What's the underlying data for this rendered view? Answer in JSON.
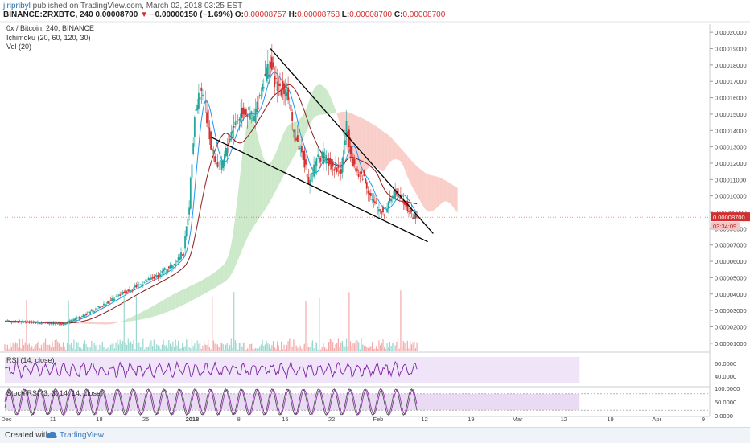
{
  "header": {
    "author": "jiripribyl",
    "published_text": " published on TradingView.com, March 02, 2018 03:25 EST",
    "symbol": "BINANCE:ZRXBTC, 240",
    "last_price": "0.00008700",
    "change": "−0.00000150 (−1.69%)",
    "o_label": "O:",
    "o_value": "0.00008757",
    "h_label": "H:",
    "h_value": "0.00008758",
    "l_label": "L:",
    "l_value": "0.00008700",
    "c_label": "C:",
    "c_value": "0.00008700"
  },
  "legend": {
    "title": "0x / Bitcoin, 240, BINANCE",
    "ichimoku": "Ichimoku (20, 60, 120, 30)",
    "vol": "Vol (20)"
  },
  "rsi_label": "RSI (14, close)",
  "stoch_label": "Stoch RSI (3, 3, 14, 14, close)",
  "price_tag": "0.00008700",
  "time_tag": "03:34:09",
  "footer": {
    "created": "Created with",
    "brand": "TradingView"
  },
  "colors": {
    "up": "#26a69a",
    "down": "#d32f2f",
    "conversion": "#2196f3",
    "base": "#8b1a1a",
    "cloud_bull": "#b5dfb0",
    "cloud_bear": "#f7b8b0",
    "rsi": "#7b1fa2",
    "band": "#e5d2f3",
    "stoch_k": "#444444",
    "stoch_d": "#8e24aa",
    "trendline": "#000000"
  },
  "chart_data": {
    "type": "candlestick",
    "x_ticks": [
      "Dec",
      "11",
      "18",
      "25",
      "2018",
      "8",
      "15",
      "22",
      "Feb",
      "12",
      "19",
      "Mar",
      "12",
      "19",
      "Apr",
      "9"
    ],
    "y_ticks": [
      "0.00020000",
      "0.00019000",
      "0.00018000",
      "0.00017000",
      "0.00016000",
      "0.00015000",
      "0.00014000",
      "0.00013000",
      "0.00012000",
      "0.00011000",
      "0.00010000",
      "0.00009000",
      "0.00008000",
      "0.00007000",
      "0.00006000",
      "0.00005000",
      "0.00004000",
      "0.00003000",
      "0.00002000",
      "0.00001000"
    ],
    "ylim": [
      5e-06,
      0.000205
    ],
    "close_path": [
      [
        0,
        2.35e-05
      ],
      [
        6,
        2.25e-05
      ],
      [
        11,
        2.2e-05
      ],
      [
        14,
        2.6e-05
      ],
      [
        18,
        3.3e-05
      ],
      [
        22,
        4.1e-05
      ],
      [
        25,
        4.6e-05
      ],
      [
        28,
        5.1e-05
      ],
      [
        31,
        5.8e-05
      ],
      [
        33,
        6.6e-05
      ],
      [
        34,
        9.5e-05
      ],
      [
        35,
        0.00015
      ],
      [
        36,
        0.000165
      ],
      [
        37,
        0.000155
      ],
      [
        38,
        0.00013
      ],
      [
        39,
        0.00012
      ],
      [
        40,
        0.000118
      ],
      [
        42,
        0.000142
      ],
      [
        44,
        0.000152
      ],
      [
        46,
        0.000148
      ],
      [
        48,
        0.000175
      ],
      [
        49,
        0.00018
      ],
      [
        50,
        0.000168
      ],
      [
        52,
        0.000165
      ],
      [
        53,
        0.000142
      ],
      [
        54,
        0.000132
      ],
      [
        55,
        0.000125
      ],
      [
        56,
        0.000108
      ],
      [
        58,
        0.000125
      ],
      [
        60,
        0.00012
      ],
      [
        62,
        0.000115
      ],
      [
        63,
        0.000142
      ],
      [
        64,
        0.000125
      ],
      [
        65,
        0.000112
      ],
      [
        66,
        0.000113
      ],
      [
        68,
        9.5e-05
      ],
      [
        69,
        9.2e-05
      ],
      [
        70,
        9e-05
      ],
      [
        71,
        9.8e-05
      ],
      [
        72,
        0.000102
      ],
      [
        73,
        0.000101
      ],
      [
        74,
        9.5e-05
      ],
      [
        75,
        8.8e-05
      ],
      [
        76,
        8.7e-05
      ]
    ],
    "trendlines": [
      {
        "from": [
          49,
          0.00019
        ],
        "to": [
          79,
          7.7e-05
        ]
      },
      {
        "from": [
          38,
          0.000136
        ],
        "to": [
          78,
          7.2e-05
        ]
      }
    ],
    "last_price": 8.7e-05,
    "rsi_ticks": [
      "60.0000",
      "40.0000"
    ],
    "stoch_ticks": [
      "100.0000",
      "50.0000",
      "0.0000"
    ]
  }
}
